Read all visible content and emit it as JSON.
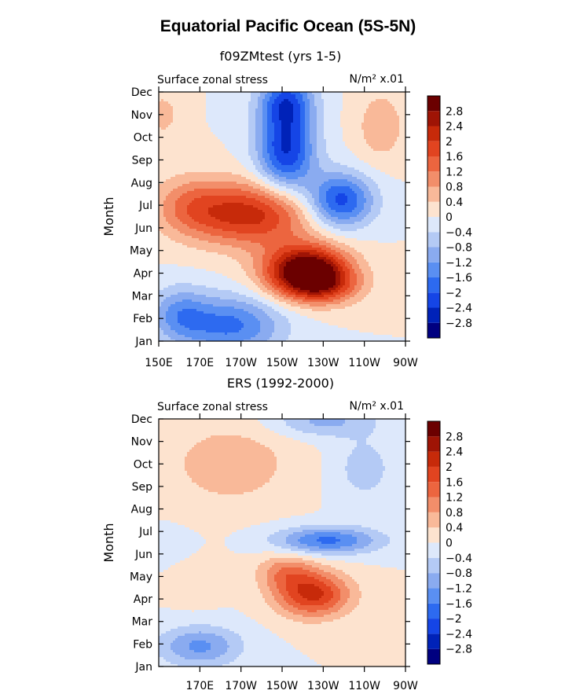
{
  "title": "Equatorial Pacific Ocean (5S-5N)",
  "colorbar": {
    "colors": [
      "#000080",
      "#0022b8",
      "#1545e6",
      "#2d6af0",
      "#5a8ff2",
      "#8aabf0",
      "#b4caf5",
      "#dde8fb",
      "#fde3cf",
      "#f9b999",
      "#f28e6a",
      "#ec653f",
      "#e14420",
      "#c72a0a",
      "#9f1405",
      "#6b0000"
    ],
    "labels": [
      "-2.8",
      "-2.4",
      "-2",
      "-1.6",
      "-1.2",
      "-0.8",
      "-0.4",
      "0",
      "0.4",
      "0.8",
      "1.2",
      "1.6",
      "2",
      "2.4",
      "2.8"
    ],
    "levels": [
      -2.8,
      -2.4,
      -2.0,
      -1.6,
      -1.2,
      -0.8,
      -0.4,
      0,
      0.4,
      0.8,
      1.2,
      1.6,
      2.0,
      2.4,
      2.8
    ]
  },
  "chart_data": [
    {
      "type": "heatmap",
      "title": "f09ZMtest (yrs 1-5)",
      "left_label": "Surface zonal stress",
      "right_label": "N/m² x.01",
      "ylabel": "Month",
      "x_range": [
        150,
        270
      ],
      "x_ticks": [
        {
          "value": 150,
          "label": "150E"
        },
        {
          "value": 170,
          "label": "170E"
        },
        {
          "value": 190,
          "label": "170W"
        },
        {
          "value": 210,
          "label": "150W"
        },
        {
          "value": 230,
          "label": "130W"
        },
        {
          "value": 250,
          "label": "110W"
        },
        {
          "value": 270,
          "label": "90W"
        }
      ],
      "y_ticks": [
        "Jan",
        "Feb",
        "Mar",
        "Apr",
        "May",
        "Jun",
        "Jul",
        "Aug",
        "Sep",
        "Oct",
        "Nov",
        "Dec"
      ],
      "features": [
        {
          "lon": 222,
          "month": 3.1,
          "amp": 3.6,
          "sx": 20,
          "sy": 1.1
        },
        {
          "lon": 230,
          "month": 2.4,
          "amp": 1.2,
          "sx": 18,
          "sy": 0.8
        },
        {
          "lon": 195,
          "month": 5.6,
          "amp": 2.2,
          "sx": 30,
          "sy": 1.4
        },
        {
          "lon": 165,
          "month": 6.0,
          "amp": 0.9,
          "sx": 18,
          "sy": 1.3
        },
        {
          "lon": 212,
          "month": 8.4,
          "amp": -2.4,
          "sx": 14,
          "sy": 1.8
        },
        {
          "lon": 238,
          "month": 6.2,
          "amp": -2.3,
          "sx": 16,
          "sy": 1.2
        },
        {
          "lon": 212,
          "month": 10.6,
          "amp": -1.9,
          "sx": 13,
          "sy": 1.2
        },
        {
          "lon": 185,
          "month": 0.7,
          "amp": -1.7,
          "sx": 25,
          "sy": 1.3
        },
        {
          "lon": 160,
          "month": 1.2,
          "amp": -1.1,
          "sx": 14,
          "sy": 1.2
        },
        {
          "lon": 258,
          "month": 9.5,
          "amp": 0.7,
          "sx": 12,
          "sy": 1.6
        },
        {
          "lon": 152,
          "month": 10.0,
          "amp": 0.6,
          "sx": 8,
          "sy": 1.0
        }
      ]
    },
    {
      "type": "heatmap",
      "title": "ERS (1992-2000)",
      "left_label": "Surface zonal stress",
      "right_label": "N/m² x.01",
      "ylabel": "Month",
      "x_range": [
        150,
        270
      ],
      "x_ticks": [
        {
          "value": 170,
          "label": "170E"
        },
        {
          "value": 190,
          "label": "170W"
        },
        {
          "value": 210,
          "label": "150W"
        },
        {
          "value": 230,
          "label": "130W"
        },
        {
          "value": 250,
          "label": "110W"
        },
        {
          "value": 270,
          "label": "90W"
        }
      ],
      "y_ticks": [
        "Jan",
        "Feb",
        "Mar",
        "Apr",
        "May",
        "Jun",
        "Jul",
        "Aug",
        "Sep",
        "Oct",
        "Nov",
        "Dec"
      ],
      "features": [
        {
          "lon": 225,
          "month": 3.2,
          "amp": 2.1,
          "sx": 18,
          "sy": 1.0
        },
        {
          "lon": 212,
          "month": 4.2,
          "amp": 1.0,
          "sx": 14,
          "sy": 0.8
        },
        {
          "lon": 185,
          "month": 9.0,
          "amp": 0.7,
          "sx": 30,
          "sy": 1.8
        },
        {
          "lon": 168,
          "month": 4.5,
          "amp": 0.4,
          "sx": 12,
          "sy": 1.5
        },
        {
          "lon": 232,
          "month": 5.6,
          "amp": -1.7,
          "sx": 25,
          "sy": 0.6
        },
        {
          "lon": 170,
          "month": 0.9,
          "amp": -1.3,
          "sx": 20,
          "sy": 0.9
        },
        {
          "lon": 230,
          "month": 10.9,
          "amp": -0.9,
          "sx": 25,
          "sy": 0.7
        },
        {
          "lon": 250,
          "month": 8.8,
          "amp": -0.6,
          "sx": 15,
          "sy": 1.5
        },
        {
          "lon": 160,
          "month": 5.3,
          "amp": -0.5,
          "sx": 15,
          "sy": 0.8
        }
      ]
    }
  ]
}
